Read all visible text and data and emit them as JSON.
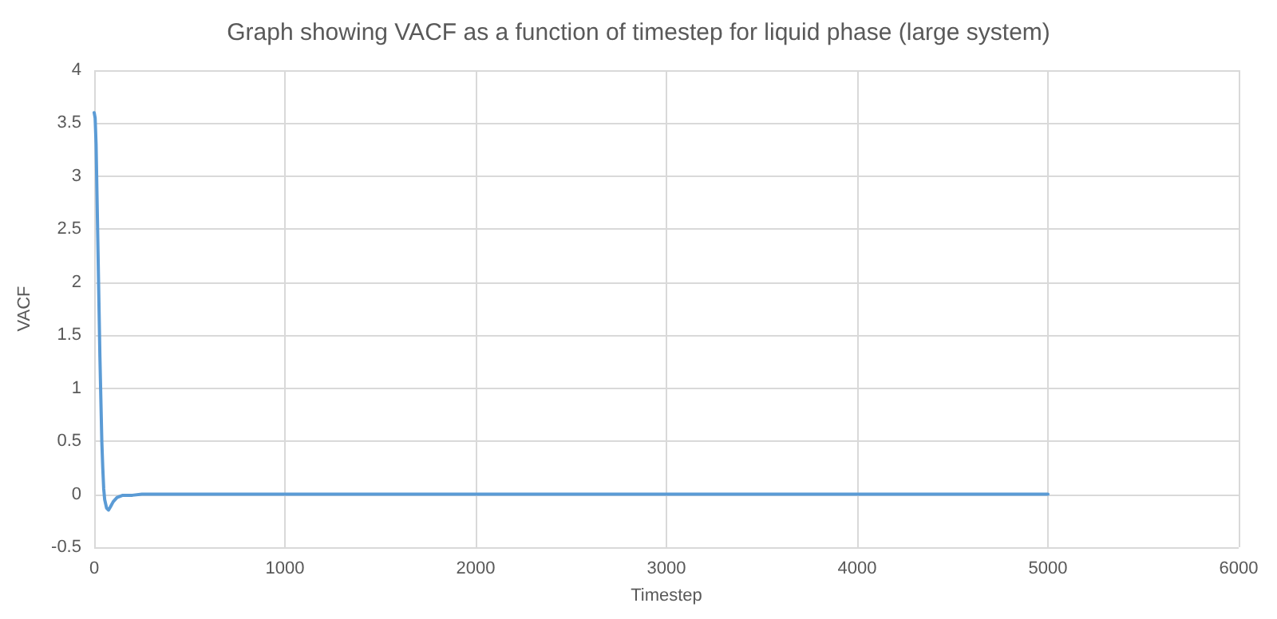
{
  "chart_data": {
    "type": "line",
    "title": "Graph showing VACF as a function of timestep for liquid phase (large system)",
    "xlabel": "Timestep",
    "ylabel": "VACF",
    "x": [
      0,
      5,
      10,
      15,
      20,
      25,
      30,
      35,
      40,
      45,
      50,
      55,
      65,
      75,
      85,
      100,
      120,
      150,
      200,
      250,
      500,
      1000,
      1500,
      2000,
      2500,
      3000,
      3500,
      4000,
      4500,
      5000
    ],
    "series": [
      {
        "color": "#5b9bd5",
        "values": [
          3.6,
          3.55,
          3.3,
          2.8,
          2.3,
          1.8,
          1.3,
          0.9,
          0.5,
          0.25,
          0.05,
          -0.05,
          -0.13,
          -0.15,
          -0.12,
          -0.07,
          -0.03,
          -0.01,
          -0.01,
          0,
          0,
          0,
          0,
          0,
          0,
          0,
          0,
          0,
          0,
          0
        ]
      }
    ],
    "xlim": [
      0,
      6000
    ],
    "xticks": [
      0,
      1000,
      2000,
      3000,
      4000,
      5000,
      6000
    ],
    "ylim": [
      -0.5,
      4
    ],
    "yticks": [
      -0.5,
      0,
      0.5,
      1,
      1.5,
      2,
      2.5,
      3,
      3.5,
      4
    ],
    "grid": true,
    "marker": "none",
    "line_style": "solid"
  }
}
